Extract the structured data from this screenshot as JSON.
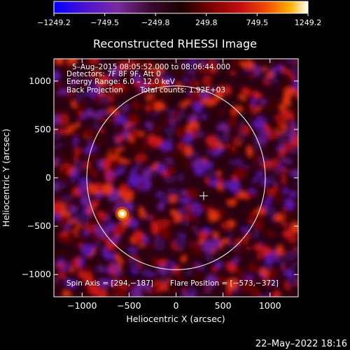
{
  "chart_data": {
    "type": "heatmap",
    "title": "Reconstructed RHESSI Image",
    "xlabel": "Heliocentric X (arcsec)",
    "ylabel": "Heliocentric Y (arcsec)",
    "xlim": [
      -1300,
      1300
    ],
    "ylim": [
      -1230,
      1230
    ],
    "xticks": [
      -1000,
      -500,
      0,
      500,
      1000
    ],
    "yticks": [
      -1000,
      -500,
      0,
      500,
      1000
    ],
    "xtick_labels": [
      "−1000",
      "−500",
      "0",
      "500",
      "1000"
    ],
    "ytick_labels": [
      "−1000",
      "−500",
      "0",
      "500",
      "1000"
    ],
    "colorbar": {
      "min": -1249.2,
      "max": 1249.2,
      "tick_values": [
        -1249.2,
        -749.5,
        -249.8,
        249.8,
        749.5,
        1249.2
      ],
      "tick_labels": [
        "−1249.2",
        "−749.5",
        "−249.8",
        "249.8",
        "749.5",
        "1249.2"
      ],
      "colors": [
        "#0000ff",
        "#5a10c0",
        "#7a2aa0",
        "#3a0a30",
        "#200000",
        "#7a0000",
        "#c81010",
        "#f05000",
        "#ffb000",
        "#ffffff"
      ]
    },
    "annotations": [
      "5–Aug–2015 08:05:52.000 to 08:06:44.000",
      "Detectors: 7F 8F 9F, Att 0",
      "Energy Range: 6.0 – 12.0 keV",
      "Back Projection",
      "Total counts: 1.92E+03"
    ],
    "footer_left": "Spin Axis = [294,−187]",
    "footer_right": "Flare Position = [−573,−372]",
    "spin_axis": [
      294,
      -187
    ],
    "flare_position": [
      -573,
      -372
    ],
    "solar_limb_radius": 950,
    "grid": false
  },
  "timestamp": "22–May–2022 18:16",
  "colors": {
    "background": "#000000",
    "foreground": "#ffffff"
  }
}
